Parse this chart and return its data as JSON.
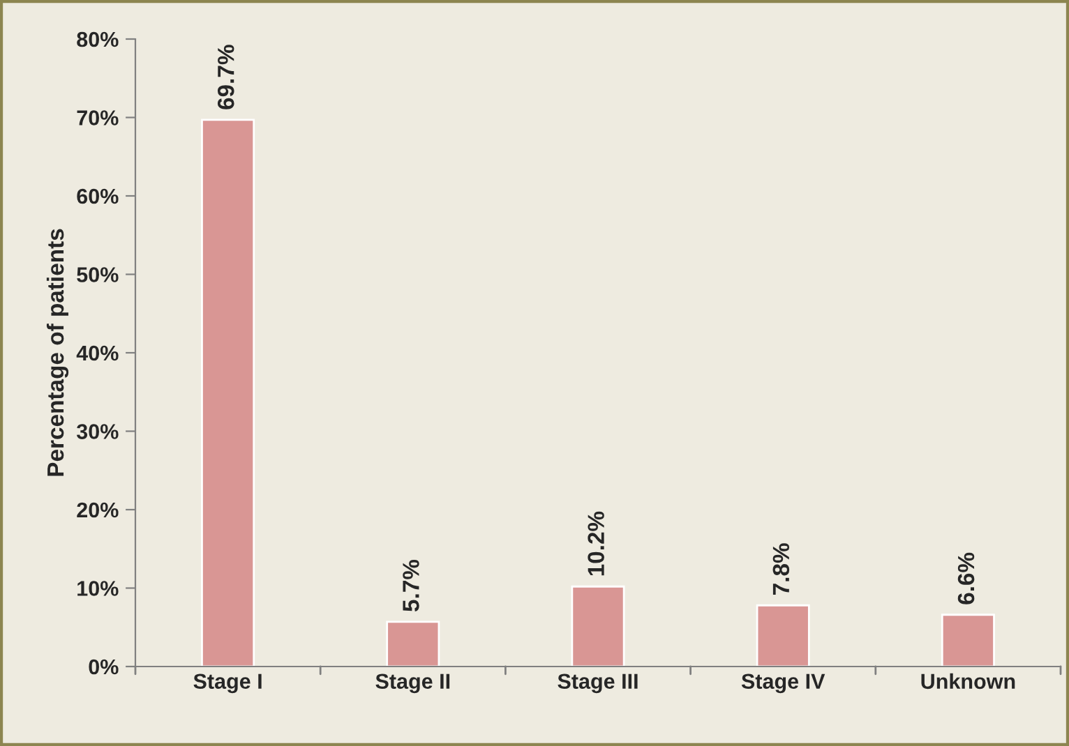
{
  "chart_data": {
    "type": "bar",
    "ylabel": "Percentage of patients",
    "categories": [
      "Stage I",
      "Stage II",
      "Stage III",
      "Stage IV",
      "Unknown"
    ],
    "values": [
      69.7,
      5.7,
      10.2,
      7.8,
      6.6
    ],
    "value_labels": [
      "69.7%",
      "5.7%",
      "10.2%",
      "7.8%",
      "6.6%"
    ],
    "color": "#d99694",
    "ylim": [
      0,
      80
    ],
    "yticks": [
      {
        "value": 0,
        "label": "0%"
      },
      {
        "value": 10,
        "label": "10%"
      },
      {
        "value": 20,
        "label": "20%"
      },
      {
        "value": 30,
        "label": "30%"
      },
      {
        "value": 40,
        "label": "40%"
      },
      {
        "value": 50,
        "label": "50%"
      },
      {
        "value": 60,
        "label": "60%"
      },
      {
        "value": 70,
        "label": "70%"
      },
      {
        "value": 80,
        "label": "80%"
      }
    ],
    "grid": false,
    "legend": false
  }
}
